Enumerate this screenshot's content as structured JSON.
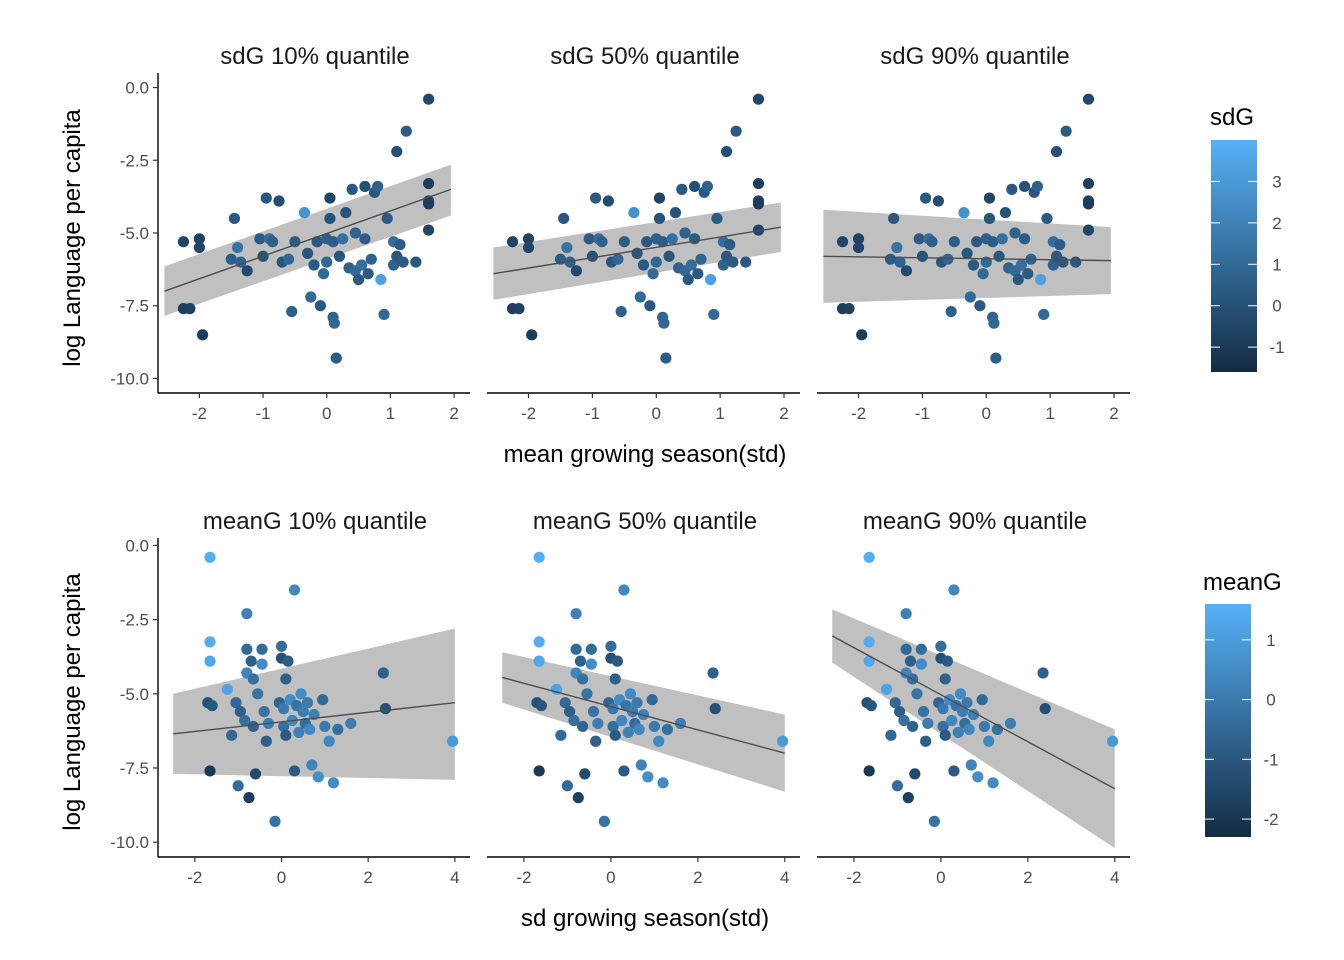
{
  "colors": {
    "low": "#132b43",
    "high": "#56b1f7",
    "band": "#bdbdbd",
    "trend": "#4d4d4d"
  },
  "rows": [
    {
      "xlabel": "mean growing season(std)",
      "ylabel": "log Language per capita",
      "xlim": [
        -2.65,
        2.25
      ],
      "ylim": [
        -10.5,
        0.5
      ],
      "x_ticks": [
        -2,
        -1,
        0,
        1,
        2
      ],
      "x_tick_labels": [
        "-2",
        "-1",
        "0",
        "1",
        "2"
      ],
      "y_ticks": [
        0,
        -2.5,
        -5,
        -7.5,
        -10
      ],
      "y_tick_labels": [
        "0.0",
        "-2.5",
        "-5.0",
        "-7.5",
        "-10.0"
      ],
      "legend": {
        "title": "sdG",
        "range": [
          -1.6,
          4.0
        ],
        "ticks": [
          3,
          2,
          1,
          0,
          -1
        ],
        "tick_labels": [
          "3",
          "2",
          "1",
          "0",
          "-1"
        ]
      }
    },
    {
      "xlabel": "sd growing season(std)",
      "ylabel": "log Language per capita",
      "xlim": [
        -2.85,
        4.35
      ],
      "ylim": [
        -10.5,
        0.25
      ],
      "x_ticks": [
        -2,
        0,
        2,
        4
      ],
      "x_tick_labels": [
        "-2",
        "0",
        "2",
        "4"
      ],
      "y_ticks": [
        0,
        -2.5,
        -5,
        -7.5,
        -10
      ],
      "y_tick_labels": [
        "0.0",
        "-2.5",
        "-5.0",
        "-7.5",
        "-10.0"
      ],
      "legend": {
        "title": "meanG",
        "range": [
          -2.3,
          1.6
        ],
        "ticks": [
          1,
          0,
          -1,
          -2
        ],
        "tick_labels": [
          "1",
          "0",
          "-1",
          "-2"
        ]
      }
    }
  ],
  "chart_data": [
    {
      "type": "scatter",
      "panels": [
        "sdG 10% quantile",
        "sdG 50% quantile",
        "sdG 90% quantile"
      ],
      "xlabel": "mean growing season(std)",
      "ylabel": "log Language per capita",
      "color_label": "sdG",
      "points": [
        [
          -2.25,
          -5.3,
          -0.5
        ],
        [
          -2.25,
          -7.6,
          -0.8
        ],
        [
          -2.15,
          -7.6,
          -0.7
        ],
        [
          -2.0,
          -5.2,
          -0.6
        ],
        [
          -2.0,
          -5.5,
          -0.5
        ],
        [
          -1.95,
          -8.5,
          -0.9
        ],
        [
          -1.45,
          -4.5,
          0.3
        ],
        [
          -1.5,
          -5.9,
          0.5
        ],
        [
          -1.4,
          -5.5,
          1.4
        ],
        [
          -1.35,
          -6.0,
          0.8
        ],
        [
          -1.25,
          -6.3,
          -0.3
        ],
        [
          -1.05,
          -5.2,
          0.4
        ],
        [
          -1.0,
          -5.8,
          0.1
        ],
        [
          -0.95,
          -3.8,
          0.3
        ],
        [
          -0.9,
          -5.2,
          1.2
        ],
        [
          -0.85,
          -5.3,
          0.6
        ],
        [
          -0.75,
          -3.9,
          -0.2
        ],
        [
          -0.7,
          -6.0,
          0.2
        ],
        [
          -0.6,
          -5.9,
          0.9
        ],
        [
          -0.55,
          -7.7,
          0.6
        ],
        [
          -0.5,
          -5.3,
          0.5
        ],
        [
          -0.35,
          -4.3,
          2.7
        ],
        [
          -0.3,
          -5.7,
          0.2
        ],
        [
          -0.25,
          -7.2,
          1.0
        ],
        [
          -0.2,
          -6.1,
          0.4
        ],
        [
          -0.15,
          -5.3,
          0.3
        ],
        [
          -0.1,
          -7.5,
          0.3
        ],
        [
          0.05,
          -3.8,
          -0.5
        ],
        [
          0.05,
          -4.5,
          0.1
        ],
        [
          0.0,
          -5.2,
          0.6
        ],
        [
          0.0,
          -6.0,
          0.9
        ],
        [
          -0.05,
          -6.4,
          1.0
        ],
        [
          0.1,
          -5.3,
          0.5
        ],
        [
          0.1,
          -7.9,
          0.8
        ],
        [
          0.12,
          -8.1,
          0.9
        ],
        [
          0.15,
          -9.3,
          0.5
        ],
        [
          0.2,
          -5.8,
          0.2
        ],
        [
          0.25,
          -5.2,
          1.3
        ],
        [
          0.3,
          -4.3,
          0.1
        ],
        [
          0.35,
          -6.2,
          0.7
        ],
        [
          0.4,
          -3.5,
          0.3
        ],
        [
          0.45,
          -5.0,
          0.7
        ],
        [
          0.45,
          -6.3,
          1.0
        ],
        [
          0.5,
          -6.6,
          0.3
        ],
        [
          0.55,
          -6.1,
          1.2
        ],
        [
          0.6,
          -3.4,
          0.0
        ],
        [
          0.6,
          -5.2,
          0.5
        ],
        [
          0.65,
          -6.4,
          0.4
        ],
        [
          0.7,
          -5.9,
          0.8
        ],
        [
          0.75,
          -3.6,
          0.2
        ],
        [
          0.8,
          -3.4,
          0.6
        ],
        [
          0.85,
          -6.6,
          3.3
        ],
        [
          0.9,
          -7.8,
          1.0
        ],
        [
          0.95,
          -4.5,
          0.4
        ],
        [
          1.05,
          -5.3,
          1.2
        ],
        [
          1.05,
          -6.1,
          0.7
        ],
        [
          1.1,
          -5.8,
          0.3
        ],
        [
          1.1,
          -2.2,
          0.0
        ],
        [
          1.15,
          -5.4,
          0.5
        ],
        [
          1.2,
          -6.0,
          0.4
        ],
        [
          1.25,
          -1.5,
          0.4
        ],
        [
          1.4,
          -6.0,
          0.3
        ],
        [
          1.6,
          -0.4,
          -0.4
        ],
        [
          1.6,
          -3.3,
          -0.8
        ],
        [
          1.6,
          -3.9,
          -0.6
        ],
        [
          1.6,
          -4.0,
          -0.9
        ],
        [
          1.6,
          -4.9,
          -0.5
        ]
      ],
      "trend_lines": [
        {
          "panel": "sdG 10% quantile",
          "x": [
            -2.55,
            1.95
          ],
          "y": [
            -7.0,
            -3.5
          ],
          "band_lower": [
            -7.85,
            -4.4
          ],
          "band_upper": [
            -6.15,
            -2.65
          ]
        },
        {
          "panel": "sdG 50% quantile",
          "x": [
            -2.55,
            1.95
          ],
          "y": [
            -6.4,
            -4.8
          ],
          "band_lower": [
            -7.3,
            -5.65
          ],
          "band_upper": [
            -5.5,
            -3.95
          ]
        },
        {
          "panel": "sdG 90% quantile",
          "x": [
            -2.55,
            1.95
          ],
          "y": [
            -5.8,
            -5.95
          ],
          "band_lower": [
            -7.4,
            -7.1
          ],
          "band_upper": [
            -4.2,
            -4.8
          ]
        }
      ]
    },
    {
      "type": "scatter",
      "panels": [
        "meanG 10% quantile",
        "meanG 50% quantile",
        "meanG 90% quantile"
      ],
      "xlabel": "sd growing season(std)",
      "ylabel": "log Language per capita",
      "color_label": "meanG",
      "points": [
        [
          -1.65,
          -0.4,
          1.5
        ],
        [
          -1.65,
          -3.25,
          1.45
        ],
        [
          -1.65,
          -3.9,
          1.3
        ],
        [
          -1.7,
          -5.3,
          -1.2
        ],
        [
          -1.65,
          -7.6,
          -1.9
        ],
        [
          -1.6,
          -5.4,
          -1.0
        ],
        [
          -1.25,
          -4.85,
          1.2
        ],
        [
          -1.15,
          -6.4,
          -0.5
        ],
        [
          -1.05,
          -5.3,
          -0.5
        ],
        [
          -1.0,
          -8.1,
          -0.4
        ],
        [
          -0.95,
          -5.6,
          -0.8
        ],
        [
          -0.8,
          -2.3,
          0.2
        ],
        [
          -0.8,
          -3.5,
          -0.5
        ],
        [
          -0.8,
          -4.3,
          0.3
        ],
        [
          -0.85,
          -5.9,
          -0.3
        ],
        [
          -0.75,
          -8.5,
          -1.7
        ],
        [
          -0.7,
          -3.9,
          -0.8
        ],
        [
          -0.65,
          -4.5,
          -0.3
        ],
        [
          -0.65,
          -6.1,
          -0.6
        ],
        [
          -0.6,
          -7.7,
          -1.4
        ],
        [
          -0.55,
          -5.0,
          -0.2
        ],
        [
          -0.45,
          -3.5,
          -0.4
        ],
        [
          -0.45,
          -4.0,
          0.5
        ],
        [
          -0.4,
          -5.6,
          -0.2
        ],
        [
          -0.35,
          -6.6,
          -0.8
        ],
        [
          -0.3,
          -6.0,
          0.1
        ],
        [
          -0.15,
          -9.3,
          -0.2
        ],
        [
          -0.05,
          -5.3,
          -0.6
        ],
        [
          0.0,
          -3.4,
          -0.4
        ],
        [
          0.0,
          -3.8,
          -1.2
        ],
        [
          0.05,
          -5.5,
          0.0
        ],
        [
          0.05,
          -6.1,
          -0.3
        ],
        [
          0.1,
          -4.5,
          -0.7
        ],
        [
          0.1,
          -6.4,
          -0.9
        ],
        [
          0.15,
          -3.9,
          -0.9
        ],
        [
          0.2,
          -5.2,
          0.5
        ],
        [
          0.25,
          -5.9,
          0.4
        ],
        [
          0.3,
          -1.5,
          0.4
        ],
        [
          0.3,
          -7.6,
          -0.9
        ],
        [
          0.35,
          -5.4,
          -0.2
        ],
        [
          0.4,
          -6.3,
          0.2
        ],
        [
          0.45,
          -5.0,
          0.5
        ],
        [
          0.5,
          -5.6,
          0.1
        ],
        [
          0.55,
          -6.0,
          -0.4
        ],
        [
          0.6,
          -5.3,
          0.0
        ],
        [
          0.65,
          -6.2,
          0.4
        ],
        [
          0.7,
          -7.4,
          0.3
        ],
        [
          0.75,
          -5.7,
          0.2
        ],
        [
          0.85,
          -7.8,
          0.6
        ],
        [
          0.95,
          -5.2,
          -0.5
        ],
        [
          1.0,
          -6.1,
          0.0
        ],
        [
          1.1,
          -6.6,
          0.4
        ],
        [
          1.2,
          -8.0,
          0.5
        ],
        [
          1.3,
          -6.2,
          -0.3
        ],
        [
          1.6,
          -6.0,
          0.1
        ],
        [
          2.35,
          -4.3,
          -0.7
        ],
        [
          2.4,
          -5.5,
          -1.2
        ],
        [
          3.95,
          -6.6,
          0.9
        ]
      ],
      "trend_lines": [
        {
          "panel": "meanG 10% quantile",
          "x": [
            -2.5,
            4.0
          ],
          "y": [
            -6.35,
            -5.3
          ],
          "band_lower": [
            -7.7,
            -7.9
          ],
          "band_upper": [
            -5.0,
            -2.8
          ]
        },
        {
          "panel": "meanG 50% quantile",
          "x": [
            -2.5,
            4.0
          ],
          "y": [
            -4.45,
            -7.0
          ],
          "band_lower": [
            -5.3,
            -8.3
          ],
          "band_upper": [
            -3.6,
            -5.7
          ]
        },
        {
          "panel": "meanG 90% quantile",
          "x": [
            -2.5,
            4.0
          ],
          "y": [
            -3.05,
            -8.2
          ],
          "band_lower": [
            -3.95,
            -10.2
          ],
          "band_upper": [
            -2.15,
            -6.2
          ]
        }
      ]
    }
  ]
}
